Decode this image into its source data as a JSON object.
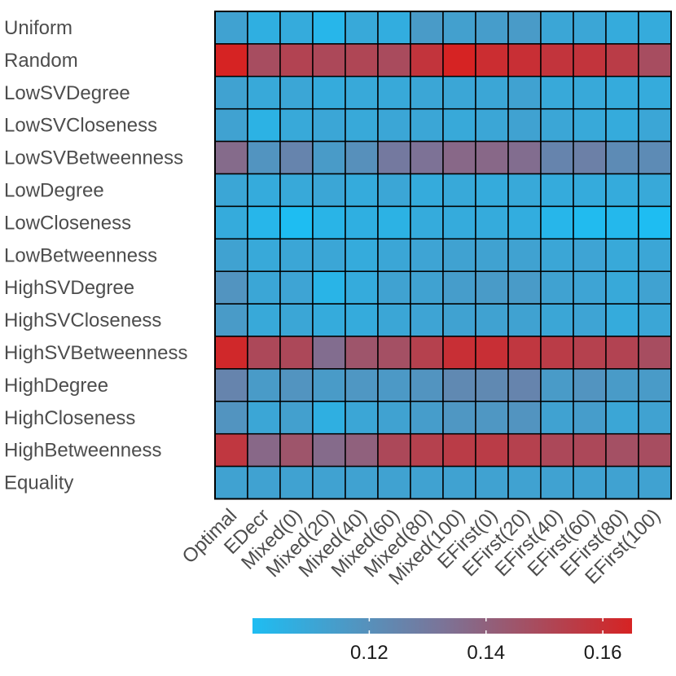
{
  "chart_data": {
    "type": "heatmap",
    "rows": [
      "Uniform",
      "Random",
      "LowSVDegree",
      "LowSVCloseness",
      "LowSVBetweenness",
      "LowDegree",
      "LowCloseness",
      "LowBetweenness",
      "HighSVDegree",
      "HighSVCloseness",
      "HighSVBetweenness",
      "HighDegree",
      "HighCloseness",
      "HighBetweenness",
      "Equality"
    ],
    "columns": [
      "Optimal",
      "EDecr",
      "Mixed(0)",
      "Mixed(20)",
      "Mixed(40)",
      "Mixed(60)",
      "Mixed(80)",
      "Mixed(100)",
      "EFirst(0)",
      "EFirst(20)",
      "EFirst(40)",
      "EFirst(60)",
      "EFirst(80)",
      "EFirst(100)"
    ],
    "values": [
      [
        0.112,
        0.106,
        0.108,
        0.103,
        0.109,
        0.107,
        0.115,
        0.113,
        0.114,
        0.115,
        0.11,
        0.11,
        0.108,
        0.108
      ],
      [
        0.167,
        0.148,
        0.152,
        0.15,
        0.151,
        0.149,
        0.158,
        0.165,
        0.161,
        0.16,
        0.158,
        0.158,
        0.155,
        0.148
      ],
      [
        0.112,
        0.109,
        0.11,
        0.108,
        0.109,
        0.109,
        0.11,
        0.11,
        0.11,
        0.112,
        0.109,
        0.109,
        0.108,
        0.108
      ],
      [
        0.112,
        0.105,
        0.109,
        0.11,
        0.109,
        0.11,
        0.11,
        0.109,
        0.11,
        0.112,
        0.11,
        0.109,
        0.108,
        0.11
      ],
      [
        0.136,
        0.118,
        0.125,
        0.115,
        0.12,
        0.13,
        0.133,
        0.137,
        0.137,
        0.135,
        0.125,
        0.127,
        0.122,
        0.122
      ],
      [
        0.11,
        0.108,
        0.109,
        0.11,
        0.108,
        0.11,
        0.108,
        0.109,
        0.108,
        0.109,
        0.108,
        0.108,
        0.108,
        0.109
      ],
      [
        0.108,
        0.103,
        0.1,
        0.104,
        0.106,
        0.105,
        0.108,
        0.108,
        0.108,
        0.107,
        0.103,
        0.101,
        0.102,
        0.1
      ],
      [
        0.112,
        0.109,
        0.11,
        0.11,
        0.108,
        0.11,
        0.111,
        0.112,
        0.112,
        0.112,
        0.11,
        0.111,
        0.109,
        0.11
      ],
      [
        0.118,
        0.11,
        0.111,
        0.104,
        0.108,
        0.112,
        0.112,
        0.114,
        0.115,
        0.115,
        0.112,
        0.111,
        0.109,
        0.112
      ],
      [
        0.115,
        0.109,
        0.11,
        0.108,
        0.108,
        0.11,
        0.111,
        0.112,
        0.112,
        0.112,
        0.11,
        0.111,
        0.108,
        0.11
      ],
      [
        0.163,
        0.15,
        0.15,
        0.135,
        0.145,
        0.147,
        0.153,
        0.16,
        0.16,
        0.157,
        0.155,
        0.153,
        0.152,
        0.148
      ],
      [
        0.125,
        0.115,
        0.118,
        0.115,
        0.117,
        0.116,
        0.118,
        0.123,
        0.123,
        0.125,
        0.115,
        0.118,
        0.115,
        0.115
      ],
      [
        0.118,
        0.11,
        0.113,
        0.106,
        0.11,
        0.112,
        0.114,
        0.117,
        0.117,
        0.118,
        0.112,
        0.114,
        0.11,
        0.112
      ],
      [
        0.157,
        0.137,
        0.145,
        0.136,
        0.14,
        0.15,
        0.153,
        0.155,
        0.155,
        0.153,
        0.15,
        0.15,
        0.147,
        0.148
      ],
      [
        0.112,
        0.112,
        0.112,
        0.112,
        0.112,
        0.112,
        0.112,
        0.112,
        0.112,
        0.112,
        0.112,
        0.112,
        0.112,
        0.112
      ]
    ],
    "colorbar": {
      "range": [
        0.1,
        0.165
      ],
      "colors": [
        "#1ebdf2",
        "#d62323"
      ],
      "ticks": [
        0.12,
        0.14,
        0.16
      ],
      "tick_labels": [
        "0.12",
        "0.14",
        "0.16"
      ]
    },
    "title": "",
    "xlabel": "",
    "ylabel": ""
  }
}
